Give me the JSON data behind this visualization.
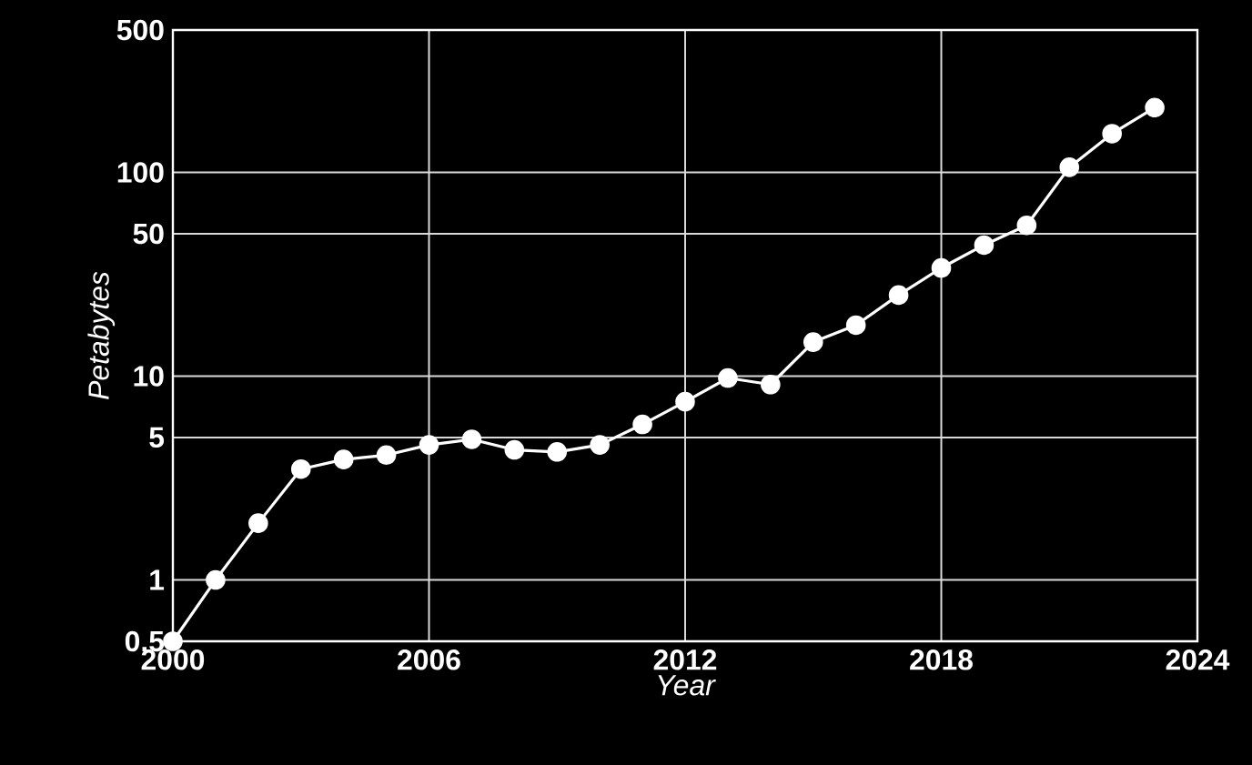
{
  "chart_data": {
    "type": "line",
    "xlabel": "Year",
    "ylabel": "Petabytes",
    "x": [
      2000,
      2001,
      2002,
      2003,
      2004,
      2005,
      2006,
      2007,
      2008,
      2009,
      2010,
      2011,
      2012,
      2013,
      2014,
      2015,
      2016,
      2017,
      2018,
      2019,
      2020,
      2021,
      2022,
      2023
    ],
    "series": [
      {
        "color": "#ffffff",
        "values": [
          0.5,
          1.0,
          1.9,
          3.5,
          3.9,
          4.1,
          4.6,
          4.9,
          4.35,
          4.25,
          4.6,
          5.8,
          7.5,
          9.8,
          9.1,
          14.7,
          17.8,
          25,
          34,
          44,
          55,
          106,
          155,
          208
        ]
      }
    ],
    "xlim": [
      2000,
      2024
    ],
    "xticks": [
      2000,
      2006,
      2012,
      2018,
      2024
    ],
    "ylim": [
      0.5,
      500
    ],
    "yticks": [
      0.5,
      1,
      5,
      10,
      50,
      100,
      500
    ],
    "log": "y",
    "grid": true,
    "marker": "circle",
    "line_style": "solid"
  }
}
